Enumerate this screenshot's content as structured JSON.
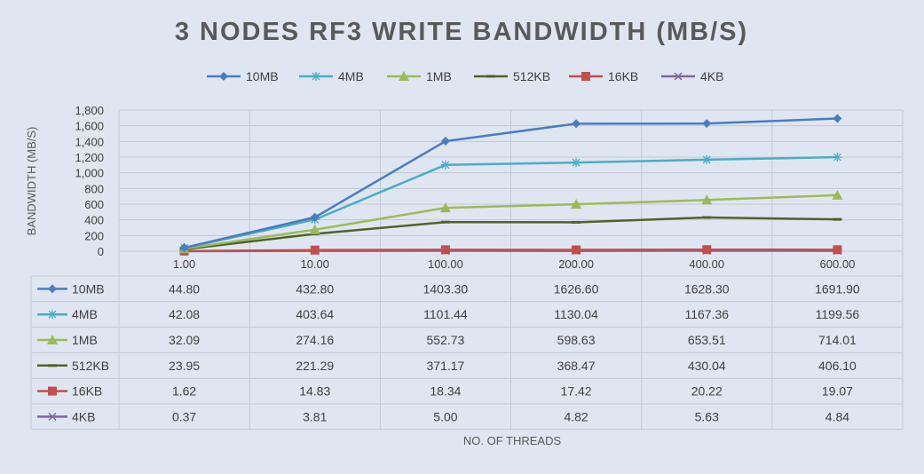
{
  "chart_data": {
    "type": "line",
    "title": "3 NODES RF3 WRITE BANDWIDTH (MB/S)",
    "xlabel": "NO. OF THREADS",
    "ylabel": "BANDWIDTH (MB/S)",
    "ylim": [
      0,
      1800
    ],
    "y_ticks": [
      "1,800",
      "1,600",
      "1,400",
      "1,200",
      "1,000",
      "800",
      "600",
      "400",
      "200",
      "0"
    ],
    "y_tick_values": [
      1800,
      1600,
      1400,
      1200,
      1000,
      800,
      600,
      400,
      200,
      0
    ],
    "categories": [
      "1.00",
      "10.00",
      "100.00",
      "200.00",
      "400.00",
      "600.00"
    ],
    "grid": true,
    "legend_position": "top",
    "series": [
      {
        "name": "10MB",
        "color": "#4a7cc0",
        "marker": "diamond",
        "values": [
          44.8,
          432.8,
          1403.3,
          1626.6,
          1628.3,
          1691.9
        ],
        "labels": [
          "44.80",
          "432.80",
          "1403.30",
          "1626.60",
          "1628.30",
          "1691.90"
        ]
      },
      {
        "name": "4MB",
        "color": "#4bacc6",
        "marker": "star",
        "values": [
          42.08,
          403.64,
          1101.44,
          1130.04,
          1167.36,
          1199.56
        ],
        "labels": [
          "42.08",
          "403.64",
          "1101.44",
          "1130.04",
          "1167.36",
          "1199.56"
        ]
      },
      {
        "name": "1MB",
        "color": "#9bbb59",
        "marker": "triangle",
        "values": [
          32.09,
          274.16,
          552.73,
          598.63,
          653.51,
          714.01
        ],
        "labels": [
          "32.09",
          "274.16",
          "552.73",
          "598.63",
          "653.51",
          "714.01"
        ]
      },
      {
        "name": "512KB",
        "color": "#4f6228",
        "marker": "dash",
        "values": [
          23.95,
          221.29,
          371.17,
          368.47,
          430.04,
          406.1
        ],
        "labels": [
          "23.95",
          "221.29",
          "371.17",
          "368.47",
          "430.04",
          "406.10"
        ]
      },
      {
        "name": "16KB",
        "color": "#c0504d",
        "marker": "square",
        "values": [
          1.62,
          14.83,
          18.34,
          17.42,
          20.22,
          19.07
        ],
        "labels": [
          "1.62",
          "14.83",
          "18.34",
          "17.42",
          "20.22",
          "19.07"
        ]
      },
      {
        "name": "4KB",
        "color": "#8064a2",
        "marker": "x",
        "values": [
          0.37,
          3.81,
          5.0,
          4.82,
          5.63,
          4.84
        ],
        "labels": [
          "0.37",
          "3.81",
          "5.00",
          "4.82",
          "5.63",
          "4.84"
        ]
      }
    ]
  }
}
